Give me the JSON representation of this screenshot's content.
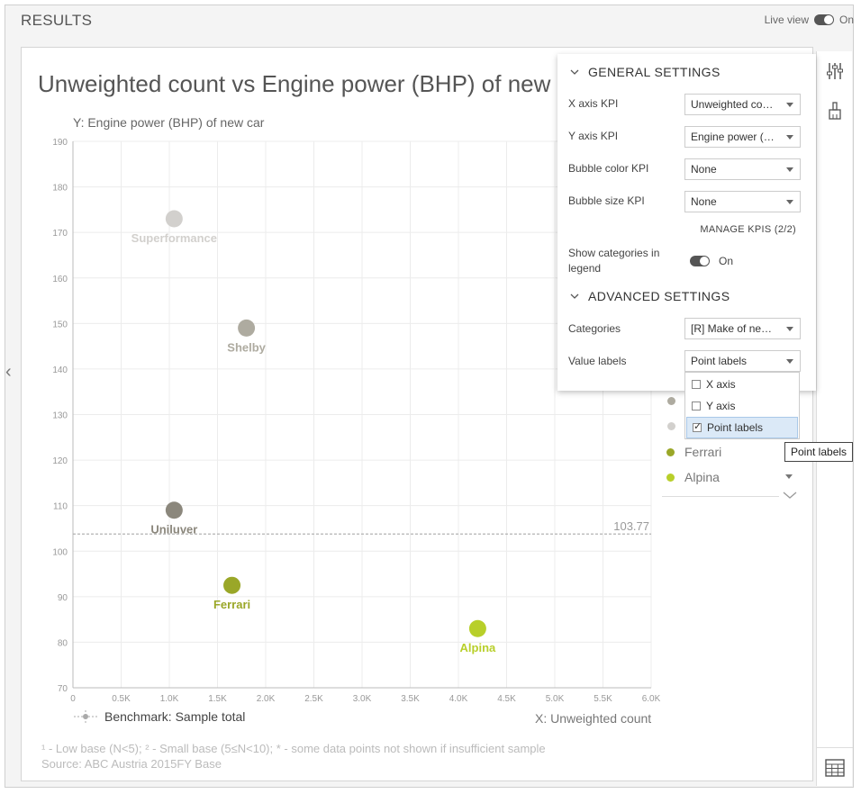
{
  "header": {
    "title": "RESULTS",
    "live_view_label": "Live view",
    "live_view_state": "On"
  },
  "chart": {
    "title": "Unweighted count vs Engine power (BHP) of new car",
    "y_axis_label": "Y: Engine power (BHP) of new car",
    "x_axis_label": "X: Unweighted count",
    "benchmark_label": "Benchmark: Sample total",
    "benchmark_value_text": "103.77"
  },
  "chart_data": {
    "type": "scatter",
    "xlim": [
      0,
      6000
    ],
    "ylim": [
      70,
      190
    ],
    "x_ticks": [
      "0",
      "0.5K",
      "1.0K",
      "1.5K",
      "2.0K",
      "2.5K",
      "3.0K",
      "3.5K",
      "4.0K",
      "4.5K",
      "5.0K",
      "5.5K",
      "6.0K"
    ],
    "y_ticks": [
      "70",
      "80",
      "90",
      "100",
      "110",
      "120",
      "130",
      "140",
      "150",
      "160",
      "170",
      "180",
      "190"
    ],
    "benchmark": 103.77,
    "grid": true,
    "points": [
      {
        "name": "Superformance",
        "x": 1050,
        "y": 173,
        "color": "#d2d0cd"
      },
      {
        "name": "Shelby",
        "x": 1800,
        "y": 149,
        "color": "#aeaba0"
      },
      {
        "name": "Uniluver",
        "x": 1050,
        "y": 109,
        "color": "#8b877c"
      },
      {
        "name": "Ferrari",
        "x": 1650,
        "y": 92.5,
        "color": "#9aa728"
      },
      {
        "name": "Alpina",
        "x": 4200,
        "y": 83,
        "color": "#b8cf2a"
      }
    ]
  },
  "footnotes": {
    "line1": "¹ - Low base (N<5);   ² - Small base (5≤N<10);   * - some data points not shown if insufficient sample",
    "line2": "Source: ABC Austria 2015FY Base"
  },
  "legend": {
    "items": [
      {
        "label": "Ferrari",
        "color": "#9aa728"
      },
      {
        "label": "Alpina",
        "color": "#b8cf2a"
      }
    ],
    "hidden_dot_colors": [
      "#aeaba0",
      "#d2d0cd"
    ]
  },
  "settings": {
    "general_title": "GENERAL SETTINGS",
    "x_axis_kpi_label": "X axis KPI",
    "x_axis_kpi_value": "Unweighted count",
    "y_axis_kpi_label": "Y axis KPI",
    "y_axis_kpi_value": "Engine power (BHP) of new car",
    "bubble_color_label": "Bubble color KPI",
    "bubble_color_value": "None",
    "bubble_size_label": "Bubble size KPI",
    "bubble_size_value": "None",
    "manage_kpis": "MANAGE KPIS (2/2)",
    "show_categories_label": "Show categories in legend",
    "show_categories_state": "On",
    "advanced_title": "ADVANCED SETTINGS",
    "categories_label": "Categories",
    "categories_value": "[R] Make of new car",
    "value_labels_label": "Value labels",
    "value_labels_value": "Point labels",
    "value_label_options": [
      {
        "label": "X axis",
        "checked": false
      },
      {
        "label": "Y axis",
        "checked": false
      },
      {
        "label": "Point labels",
        "checked": true
      }
    ],
    "tooltip": "Point labels"
  },
  "sidebar": {
    "icons": [
      "sliders-icon",
      "brush-icon",
      "table-icon"
    ]
  }
}
